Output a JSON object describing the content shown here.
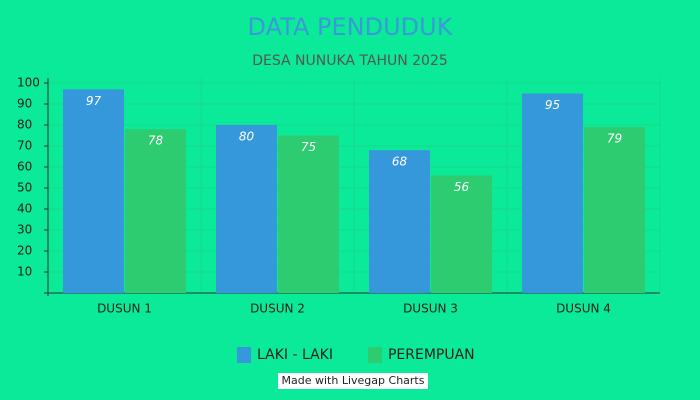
{
  "chart_data": {
    "type": "bar",
    "title": "DATA PENDUDUK",
    "subtitle": "DESA NUNUKA TAHUN 2025",
    "categories": [
      "DUSUN 1",
      "DUSUN 2",
      "DUSUN 3",
      "DUSUN 4"
    ],
    "series": [
      {
        "name": "LAKI - LAKI",
        "color": "#3498db",
        "values": [
          97,
          80,
          68,
          95
        ]
      },
      {
        "name": "PEREMPUAN",
        "color": "#2ecc71",
        "values": [
          78,
          75,
          56,
          79
        ]
      }
    ],
    "ylim": [
      0,
      100
    ],
    "yticks": [
      10,
      20,
      30,
      40,
      50,
      60,
      70,
      80,
      90,
      100
    ],
    "grid": true,
    "legend": "bottom",
    "credit": "Made with Livegap Charts"
  }
}
